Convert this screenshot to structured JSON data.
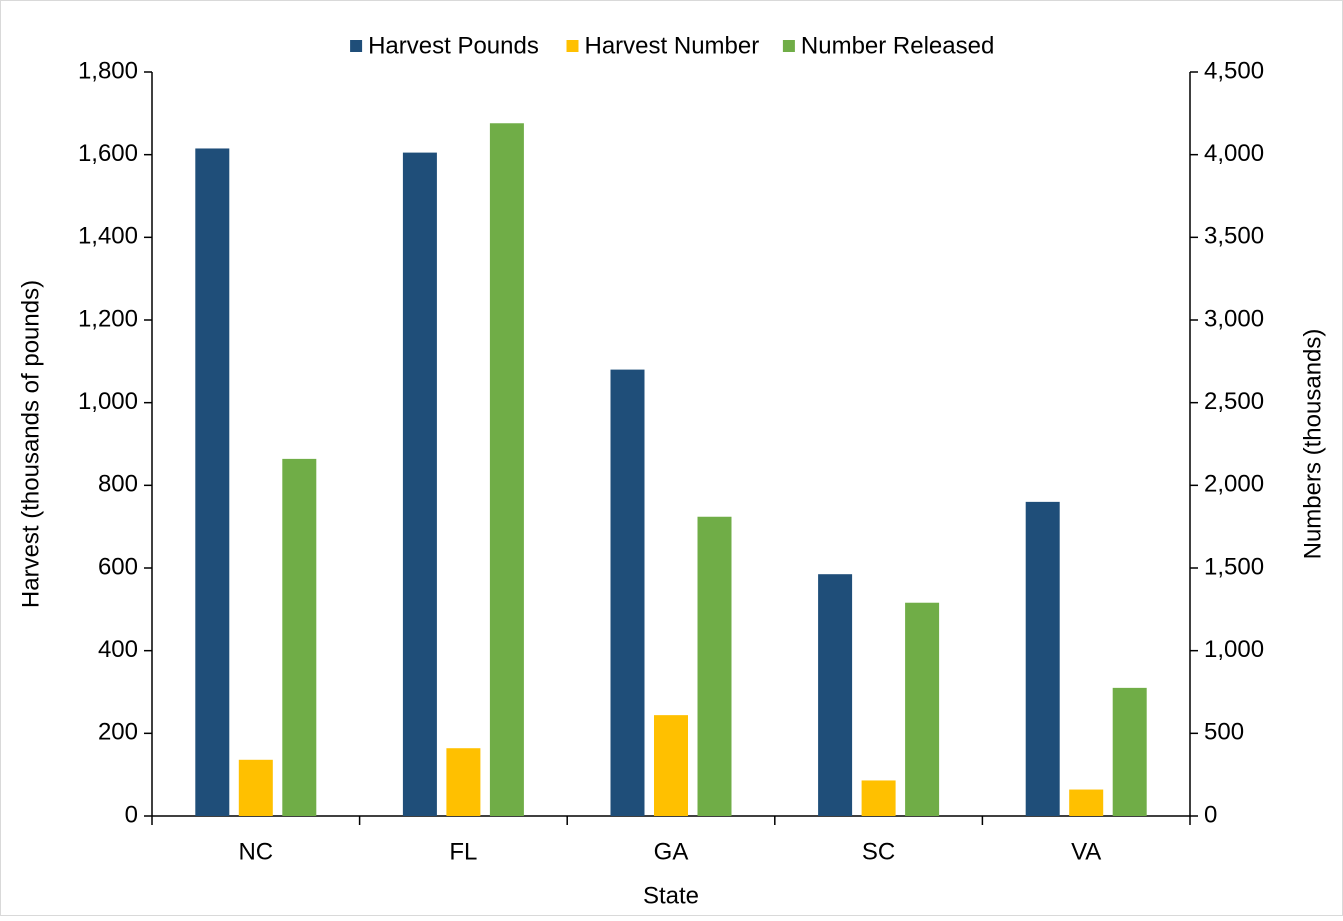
{
  "chart_data": {
    "type": "bar",
    "x_label": "State",
    "y_label": "Harvest (thousands of pounds)",
    "y2_label": "Numbers (thousands)",
    "categories": [
      "NC",
      "FL",
      "GA",
      "SC",
      "VA"
    ],
    "series": [
      {
        "name": "Harvest Pounds",
        "color": "#1f4e79",
        "values": [
          1615,
          1605,
          1080,
          585,
          760
        ]
      },
      {
        "name": "Harvest Number",
        "color": "#ffc000",
        "axis": "y2",
        "values": [
          340,
          410,
          610,
          215,
          160
        ]
      },
      {
        "name": "Number Released",
        "color": "#70ad47",
        "axis": "y2",
        "values": [
          2160,
          4190,
          1810,
          1290,
          775
        ]
      }
    ],
    "ylim": [
      0,
      1800
    ],
    "yticks": [
      0,
      200,
      400,
      600,
      800,
      {
        "value": 1000,
        "label": "1,000"
      },
      {
        "value": 1200,
        "label": "1,200"
      },
      {
        "value": 1400,
        "label": "1,400"
      },
      {
        "value": 1600,
        "label": "1,600"
      },
      {
        "value": 1800,
        "label": "1,800"
      }
    ],
    "y2lim": [
      0,
      4500
    ],
    "y2ticks": [
      0,
      500,
      {
        "value": 1000,
        "label": "1,000"
      },
      {
        "value": 1500,
        "label": "1,500"
      },
      {
        "value": 2000,
        "label": "2,000"
      },
      {
        "value": 2500,
        "label": "2,500"
      },
      {
        "value": 3000,
        "label": "3,000"
      },
      {
        "value": 3500,
        "label": "3,500"
      },
      {
        "value": 4000,
        "label": "4,000"
      },
      {
        "value": 4500,
        "label": "4,500"
      }
    ],
    "legend": "top",
    "grid": false
  }
}
